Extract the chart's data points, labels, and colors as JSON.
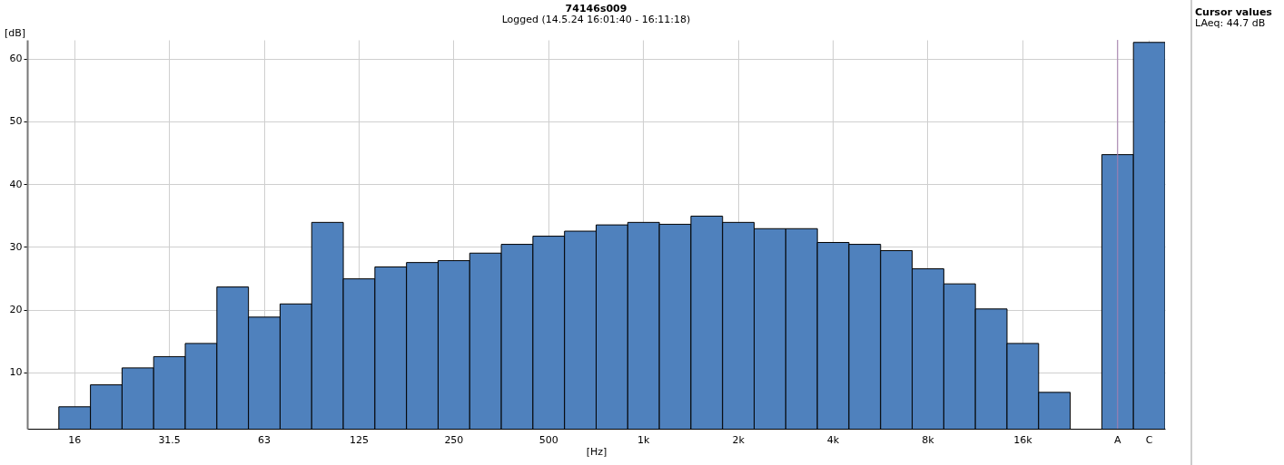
{
  "chart_data": {
    "type": "bar",
    "title": "74146s009",
    "subtitle": "Logged (14.5.24 16:01:40 - 16:11:18)",
    "xlabel": "[Hz]",
    "ylabel": "[dB]",
    "categories": [
      "16",
      null,
      null,
      "31.5",
      null,
      null,
      "63",
      null,
      null,
      "125",
      null,
      null,
      "250",
      null,
      null,
      "500",
      null,
      null,
      "1k",
      null,
      null,
      "2k",
      null,
      null,
      "4k",
      null,
      null,
      "8k",
      null,
      null,
      "16k",
      null,
      null,
      "A",
      "C"
    ],
    "values": [
      4.5,
      8.0,
      10.7,
      12.5,
      14.6,
      23.6,
      18.8,
      20.9,
      33.9,
      24.9,
      26.8,
      27.5,
      27.8,
      29.0,
      30.4,
      31.7,
      32.5,
      33.5,
      33.9,
      33.6,
      34.9,
      33.9,
      32.9,
      32.9,
      30.7,
      30.4,
      29.4,
      26.5,
      24.1,
      20.1,
      14.6,
      6.8,
      null,
      44.7,
      62.6
    ],
    "color": "#4f81bd",
    "ylim": [
      1,
      63
    ],
    "yticks": [
      10,
      20,
      30,
      40,
      50,
      60
    ],
    "grid": true,
    "ref_lines": [
      {
        "axis": "x",
        "value": "A",
        "color": "#a77fb0"
      }
    ],
    "annotations": [
      "Cursor values",
      "LAeq: 44.7 dB"
    ]
  }
}
